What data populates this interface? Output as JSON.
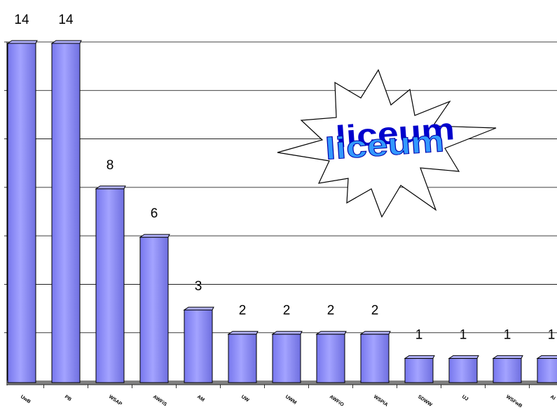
{
  "chart_data": {
    "type": "bar",
    "categories": [
      "UwB",
      "PB",
      "WSAP",
      "AWFiS",
      "AM",
      "UW",
      "UWM",
      "AWFiO",
      "WSPiA",
      "SDWW",
      "UJ",
      "WSFwB",
      "AI"
    ],
    "values": [
      14,
      14,
      8,
      6,
      3,
      2,
      2,
      2,
      2,
      1,
      1,
      1,
      1
    ],
    "ylim": [
      0,
      14
    ],
    "grid": true,
    "bar_color": "#9999ff",
    "legend": "none"
  },
  "logo": {
    "text": "liceum",
    "colors": [
      "#0000cc",
      "#3399ff"
    ]
  }
}
